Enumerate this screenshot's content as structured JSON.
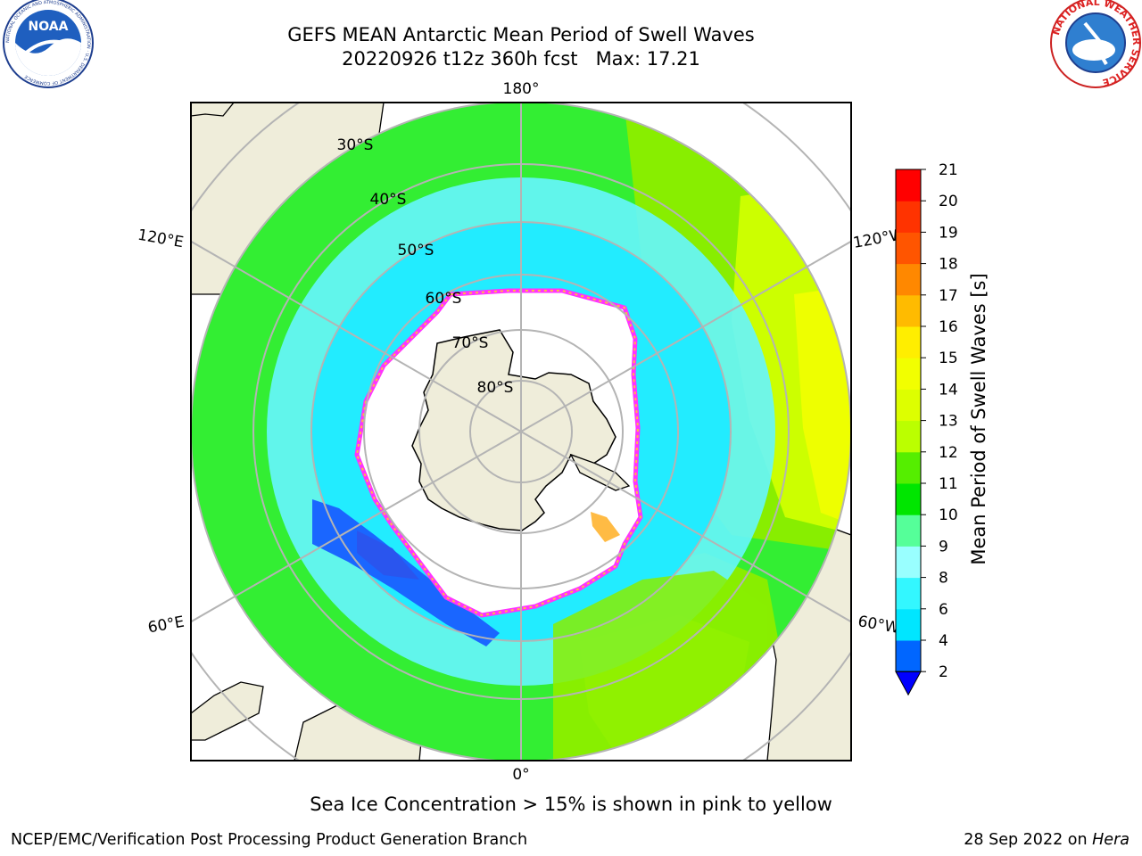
{
  "header": {
    "title_line1": "GEFS MEAN Antarctic Mean Period of Swell Waves",
    "title_line2": "20220926 t12z 360h fcst   Max: 17.21"
  },
  "logos": {
    "left_text": "NOAA",
    "left_ring_text": "NATIONAL OCEANIC AND ATMOSPHERIC ADMINISTRATION · U.S. DEPARTMENT OF COMMERCE",
    "right_ring_text": "NATIONAL WEATHER SERVICE"
  },
  "map": {
    "projection": "south polar stereographic",
    "longitude_labels": {
      "top": "180°",
      "bottom": "0°",
      "upper_left": "120°E",
      "lower_left": "60°E",
      "upper_right": "120°W",
      "lower_right": "60°W"
    },
    "latitude_labels": [
      "30°S",
      "40°S",
      "50°S",
      "60°S",
      "70°S",
      "80°S"
    ],
    "colors": {
      "land": "#efedda",
      "ocean_missing": "#ffffff",
      "grid": "#b4b4b4",
      "coast": "#000000",
      "ice_edge": "#ff33ff",
      "ice_inner": "#ffbb44"
    }
  },
  "colorbar": {
    "label": "Mean Period of Swell Waves [s]",
    "ticks": [
      "2",
      "4",
      "6",
      "8",
      "9",
      "10",
      "11",
      "12",
      "13",
      "14",
      "15",
      "16",
      "17",
      "18",
      "19",
      "20",
      "21"
    ],
    "colors": [
      "#0066ff",
      "#00e6ff",
      "#33f7ff",
      "#99ffff",
      "#55ff99",
      "#00e600",
      "#55ee00",
      "#bbff00",
      "#ddff00",
      "#f2ff00",
      "#ffee00",
      "#ffbb00",
      "#ff8800",
      "#ff5500",
      "#ff3300",
      "#ff0000"
    ],
    "underflow_color": "#0000ff"
  },
  "caption": "Sea Ice Concentration > 15% is shown in pink to yellow",
  "footer": {
    "left": "NCEP/EMC/Verification Post Processing Product Generation Branch",
    "right_date": "28 Sep 2022 on ",
    "right_host": "Hera"
  }
}
